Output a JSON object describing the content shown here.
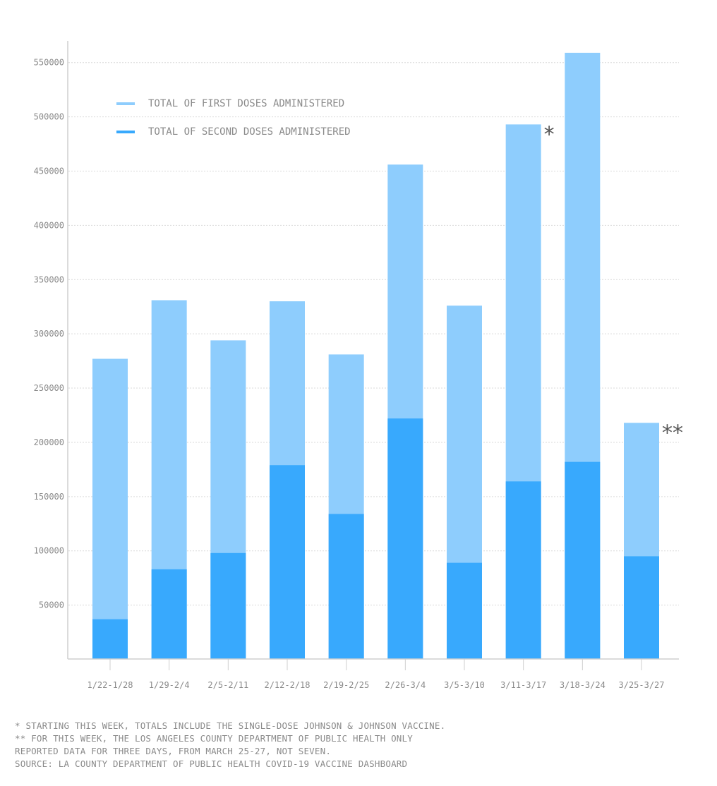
{
  "chart_data": {
    "type": "bar",
    "stacked": false,
    "overlapping": true,
    "categories": [
      "1/22-1/28",
      "1/29-2/4",
      "2/5-2/11",
      "2/12-2/18",
      "2/19-2/25",
      "2/26-3/4",
      "3/5-3/10",
      "3/11-3/17",
      "3/18-3/24",
      "3/25-3/27"
    ],
    "series": [
      {
        "name": "TOTAL OF FIRST DOSES ADMINISTERED",
        "color": "#8ecdfd",
        "values": [
          277000,
          331000,
          294000,
          330000,
          281000,
          456000,
          326000,
          493000,
          559000,
          218000
        ]
      },
      {
        "name": "TOTAL OF SECOND DOSES ADMINISTERED",
        "color": "#38a9fd",
        "values": [
          37000,
          83000,
          98000,
          179000,
          134000,
          222000,
          89000,
          164000,
          182000,
          95000
        ]
      }
    ],
    "yticks": [
      50000,
      100000,
      150000,
      200000,
      250000,
      300000,
      350000,
      400000,
      450000,
      500000,
      550000
    ],
    "ylim": [
      0,
      570000
    ],
    "grid": true,
    "legend_position": "top-left",
    "annotations": [
      {
        "category": "3/11-3/17",
        "text": "*"
      },
      {
        "category": "3/25-3/27",
        "text": "**"
      }
    ]
  },
  "footnotes": {
    "line1": "* STARTING THIS WEEK, TOTALS INCLUDE THE SINGLE-DOSE JOHNSON & JOHNSON VACCINE.",
    "line2": "** FOR THIS WEEK, THE LOS ANGELES COUNTY DEPARTMENT OF PUBLIC HEALTH ONLY",
    "line3": "REPORTED DATA FOR THREE DAYS, FROM MARCH 25-27, NOT SEVEN.",
    "source": "SOURCE: LA COUNTY DEPARTMENT OF PUBLIC HEALTH COVID-19 VACCINE DASHBOARD"
  }
}
